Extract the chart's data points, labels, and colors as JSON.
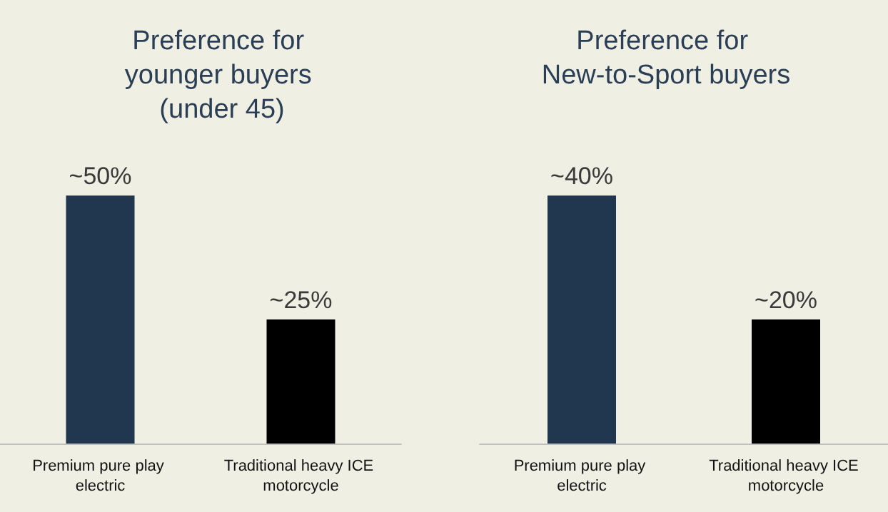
{
  "chart_data": [
    {
      "type": "bar",
      "title": "Preference for younger buyers (under 45)",
      "categories": [
        "Premium pure play electric",
        "Traditional heavy ICE motorcycle"
      ],
      "values": [
        50,
        25
      ],
      "colors": [
        "#21364f",
        "#000000"
      ],
      "value_labels": [
        "~50%",
        "~25%"
      ]
    },
    {
      "type": "bar",
      "title": "Preference for New-to-Sport buyers",
      "categories": [
        "Premium pure play electric",
        "Traditional heavy ICE motorcycle"
      ],
      "values": [
        40,
        20
      ],
      "colors": [
        "#21364f",
        "#000000"
      ],
      "value_labels": [
        "~40%",
        "~20%"
      ]
    }
  ]
}
